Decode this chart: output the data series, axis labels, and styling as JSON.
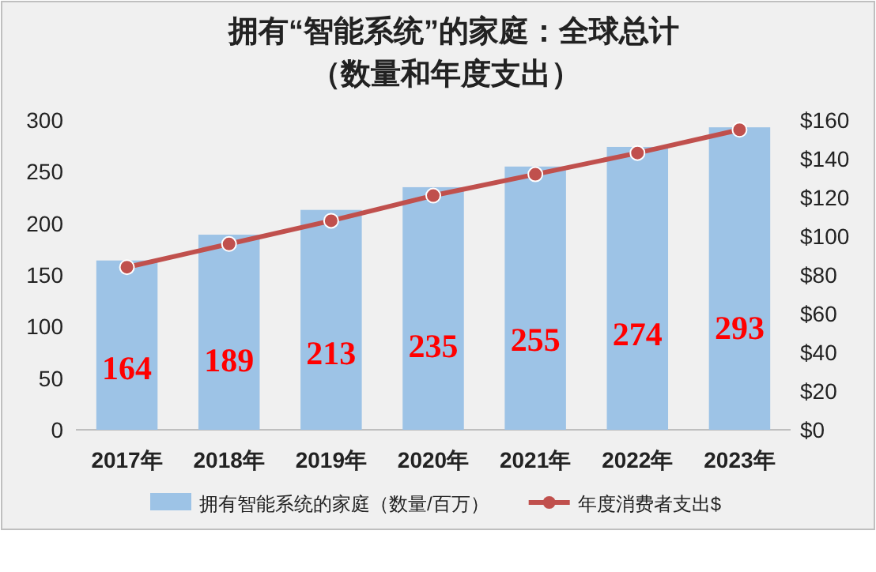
{
  "chart_data": {
    "type": "bar",
    "title": "拥有“智能系统”的家庭：全球总计",
    "subtitle": "（数量和年度支出）",
    "categories": [
      "2017年",
      "2018年",
      "2019年",
      "2020年",
      "2021年",
      "2022年",
      "2023年"
    ],
    "series": [
      {
        "name": "拥有智能系统的家庭（数量/百万）",
        "color": "#9dc3e6",
        "values": [
          164,
          189,
          213,
          235,
          255,
          274,
          293
        ],
        "value_labels": [
          "164",
          "189",
          "213",
          "235",
          "255",
          "274",
          "293"
        ]
      },
      {
        "name": "年度消费者支出$",
        "type": "line",
        "axis": "y2",
        "color": "#c0504d",
        "values": [
          84,
          96,
          108,
          121,
          132,
          143,
          155
        ]
      }
    ],
    "ylim": [
      0,
      300
    ],
    "yticks": [
      0,
      50,
      100,
      150,
      200,
      250,
      300
    ],
    "y2lim": [
      0,
      160
    ],
    "y2ticks": [
      {
        "value": 0,
        "label": "$0"
      },
      {
        "value": 20,
        "label": "$20"
      },
      {
        "value": 40,
        "label": "$40"
      },
      {
        "value": 60,
        "label": "$60"
      },
      {
        "value": 80,
        "label": "$80"
      },
      {
        "value": 100,
        "label": "$100"
      },
      {
        "value": 120,
        "label": "$120"
      },
      {
        "value": 140,
        "label": "$140"
      },
      {
        "value": 160,
        "label": "$160"
      }
    ],
    "marker": "circle",
    "legend": "bottom"
  }
}
